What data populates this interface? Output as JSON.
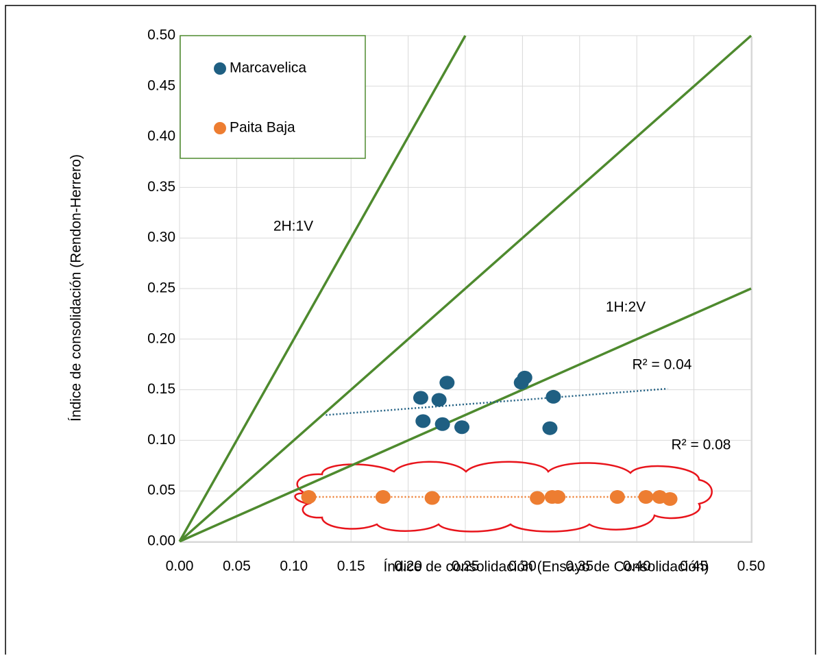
{
  "chart_data": {
    "type": "scatter",
    "x_label": "Índice de consolidación (Ensayo de Consolidación)",
    "y_label": "Índice de consolidación (Rendon-Herrero)",
    "xlim": [
      0,
      0.5
    ],
    "ylim": [
      0,
      0.5
    ],
    "xticks": [
      {
        "value": 0,
        "label": "0.00"
      },
      {
        "value": 0.05,
        "label": "0.05"
      },
      {
        "value": 0.1,
        "label": "0.10"
      },
      {
        "value": 0.15,
        "label": "0.15"
      },
      {
        "value": 0.2,
        "label": "0.20"
      },
      {
        "value": 0.25,
        "label": "0.25"
      },
      {
        "value": 0.3,
        "label": "0.30"
      },
      {
        "value": 0.35,
        "label": "0.35"
      },
      {
        "value": 0.4,
        "label": "0.40"
      },
      {
        "value": 0.45,
        "label": "0.45"
      },
      {
        "value": 0.5,
        "label": "0.50"
      }
    ],
    "yticks": [
      {
        "value": 0,
        "label": "0.00"
      },
      {
        "value": 0.05,
        "label": "0.05"
      },
      {
        "value": 0.1,
        "label": "0.10"
      },
      {
        "value": 0.15,
        "label": "0.15"
      },
      {
        "value": 0.2,
        "label": "0.20"
      },
      {
        "value": 0.25,
        "label": "0.25"
      },
      {
        "value": 0.3,
        "label": "0.30"
      },
      {
        "value": 0.35,
        "label": "0.35"
      },
      {
        "value": 0.4,
        "label": "0.40"
      },
      {
        "value": 0.45,
        "label": "0.45"
      },
      {
        "value": 0.5,
        "label": "0.50"
      }
    ],
    "grid": true,
    "legend": "upper left",
    "series": [
      {
        "name": "Marcavelica",
        "color": "#1f5f82",
        "x": [
          0.211,
          0.227,
          0.234,
          0.213,
          0.23,
          0.247,
          0.299,
          0.302,
          0.327,
          0.324
        ],
        "values": [
          0.142,
          0.14,
          0.157,
          0.119,
          0.116,
          0.113,
          0.157,
          0.162,
          0.143,
          0.112
        ],
        "trendline": {
          "x": [
            0.128,
            0.427
          ],
          "values": [
            0.125,
            0.151
          ]
        }
      },
      {
        "name": "Paita Baja",
        "color": "#ed7d31",
        "x": [
          0.113,
          0.178,
          0.221,
          0.313,
          0.326,
          0.331,
          0.383,
          0.408,
          0.42,
          0.429
        ],
        "values": [
          0.044,
          0.044,
          0.043,
          0.043,
          0.044,
          0.044,
          0.044,
          0.044,
          0.044,
          0.042
        ],
        "trendline": {
          "x": [
            0.113,
            0.429
          ],
          "values": [
            0.044,
            0.044
          ]
        }
      }
    ],
    "reference_lines": [
      {
        "label": "2H:1V",
        "color": "#4e8a2e",
        "x": [
          0,
          0.25
        ],
        "values": [
          0,
          0.5
        ]
      },
      {
        "color": "#4e8a2e",
        "x": [
          0,
          0.5
        ],
        "values": [
          0,
          0.5
        ]
      },
      {
        "label": "1H:2V",
        "color": "#4e8a2e",
        "x": [
          0,
          0.5
        ],
        "values": [
          0,
          0.25
        ]
      }
    ],
    "annotations": [
      "R² = 0.04",
      "R² = 0.08"
    ]
  }
}
